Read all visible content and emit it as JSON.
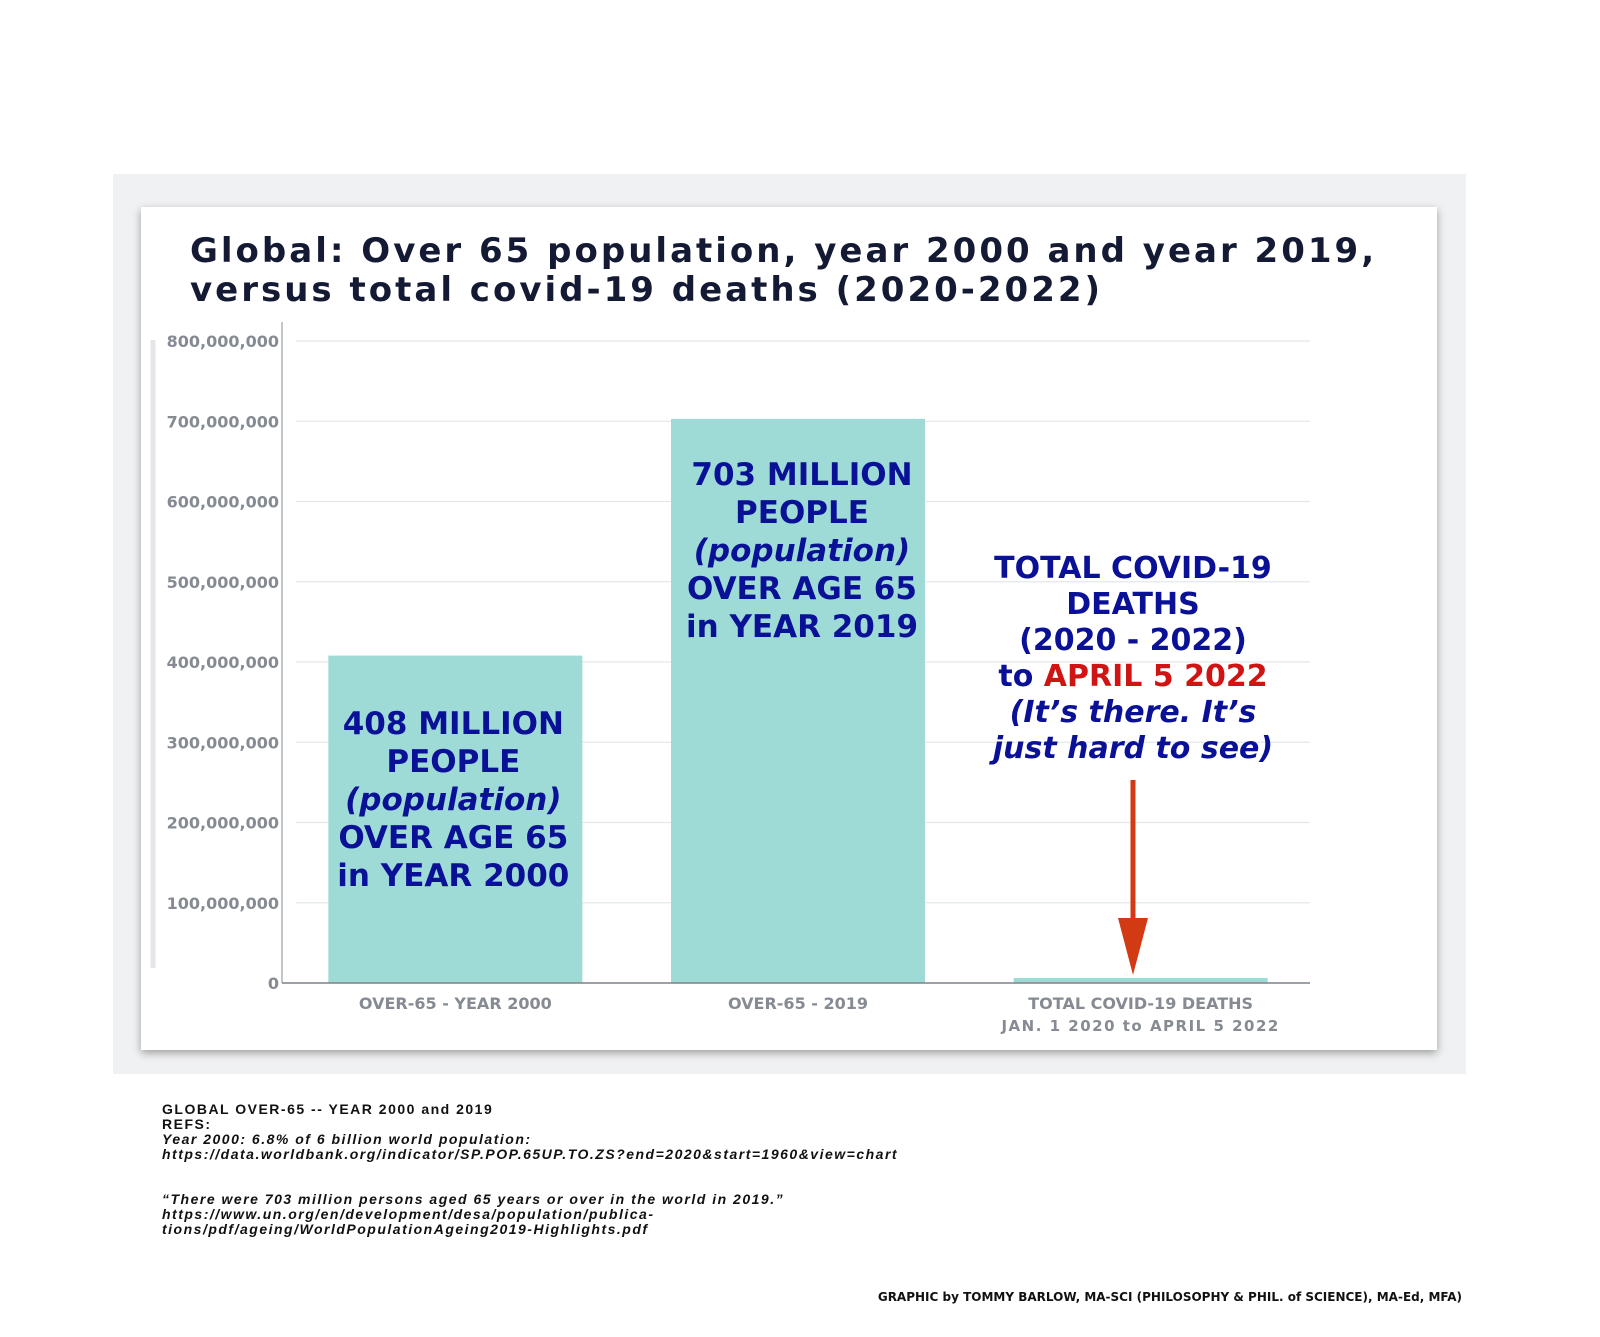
{
  "chart_data": {
    "type": "bar",
    "title_lines": [
      "Global: Over 65 population, year 2000 and year 2019,",
      "versus total covid-19 deaths (2020-2022)"
    ],
    "categories": [
      [
        "OVER-65 - YEAR 2000"
      ],
      [
        "OVER-65 - 2019"
      ],
      [
        "TOTAL COVID-19 DEATHS",
        "JAN. 1 2020 to APRIL 5 2022"
      ]
    ],
    "values": [
      408000000,
      703000000,
      6200000
    ],
    "ylim": [
      0,
      800000000
    ],
    "yticks": [
      0,
      100000000,
      200000000,
      300000000,
      400000000,
      500000000,
      600000000,
      700000000,
      800000000
    ],
    "ytick_labels": [
      "0",
      "100,000,000",
      "200,000,000",
      "300,000,000",
      "400,000,000",
      "500,000,000",
      "600,000,000",
      "700,000,000",
      "800,000,000"
    ],
    "grid": true,
    "bar_color": "#9fdbd6",
    "annotations": {
      "bar1": [
        {
          "text": "408 MILLION",
          "style": "normal"
        },
        {
          "text": "PEOPLE",
          "style": "normal"
        },
        {
          "text": "(population)",
          "style": "italic"
        },
        {
          "text": "OVER AGE 65",
          "style": "normal"
        },
        {
          "text": "in YEAR 2000",
          "style": "normal"
        }
      ],
      "bar2": [
        {
          "text": "703 MILLION",
          "style": "normal"
        },
        {
          "text": "PEOPLE",
          "style": "normal"
        },
        {
          "text": "(population)",
          "style": "italic"
        },
        {
          "text": "OVER AGE 65",
          "style": "normal"
        },
        {
          "text": "in YEAR 2019",
          "style": "normal"
        }
      ],
      "covid": {
        "lines": [
          "TOTAL COVID-19",
          "DEATHS",
          "(2020 - 2022)"
        ],
        "to_prefix": "to ",
        "to_date": "APRIL 5 2022",
        "italic_lines": [
          "(It’s there. It’s",
          "just hard to see)"
        ]
      }
    },
    "colors": {
      "annotation": "#0a1196",
      "highlight": "#d01414",
      "arrow": "#d23a14",
      "axis_text": "#868b93",
      "grid": "#e3e8ec"
    }
  },
  "refs": {
    "line1": "GLOBAL OVER-65 -- YEAR 2000 and 2019",
    "line2": "REFS:",
    "line3": "Year 2000: 6.8% of 6 billion world population:",
    "line4": "https://data.worldbank.org/indicator/SP.POP.65UP.TO.ZS?end=2020&start=1960&view=chart",
    "line5": "“There were 703 million persons aged 65 years or over in the world in 2019.”",
    "line6": "https://www.un.org/en/development/desa/population/publica-",
    "line7": "tions/pdf/ageing/WorldPopulationAgeing2019-Highlights.pdf"
  },
  "credit": "GRAPHIC by TOMMY BARLOW, MA-SCI (PHILOSOPHY & PHIL. of SCIENCE), MA-Ed, MFA)"
}
